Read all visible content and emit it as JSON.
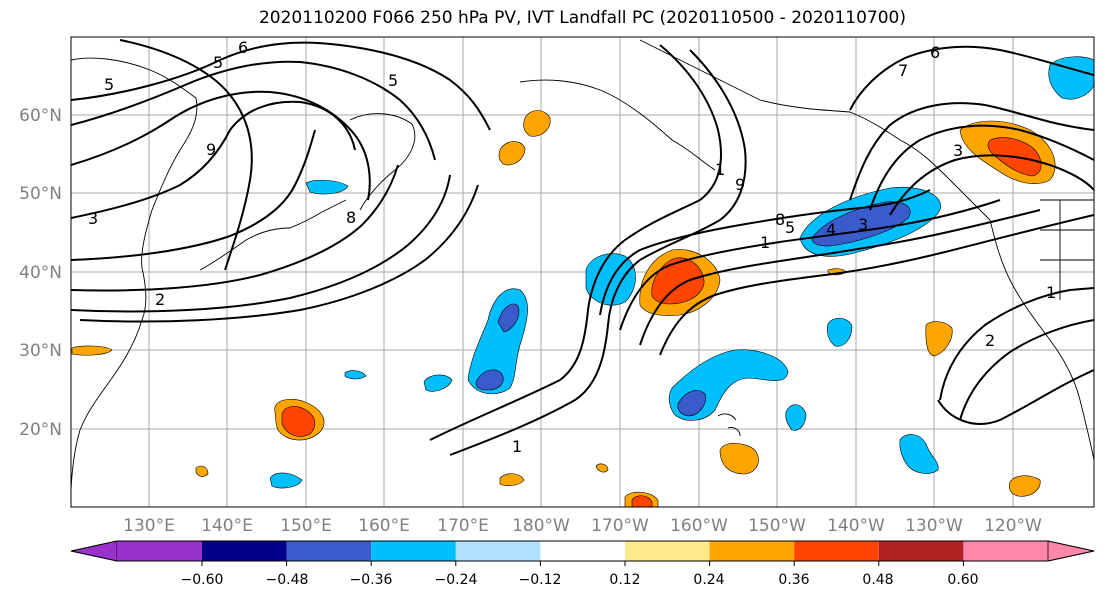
{
  "title": "2020110200 F066 250 hPa PV, IVT Landfall PC (2020110500 - 2020110700)",
  "map": {
    "lon_labels": [
      "130°E",
      "140°E",
      "150°E",
      "160°E",
      "170°E",
      "180°W",
      "170°W",
      "160°W",
      "150°W",
      "140°W",
      "130°W",
      "120°W"
    ],
    "lat_labels": [
      "60°N",
      "50°N",
      "40°N",
      "30°N",
      "20°N"
    ],
    "pv_contour_labels": [
      "6",
      "5",
      "5",
      "5",
      "9",
      "8",
      "3",
      "1",
      "2",
      "1",
      "9",
      "8",
      "1",
      "5",
      "4",
      "3",
      "7",
      "6",
      "3",
      "1",
      "2"
    ]
  },
  "colorbar": {
    "colors": [
      "#9932cc",
      "#00008b",
      "#3a5bcc",
      "#00bfff",
      "#b0e2ff",
      "#ffffff",
      "#ffe98a",
      "#ffa500",
      "#ff4500",
      "#b22222",
      "#ff88aa"
    ],
    "tick_labels": [
      "−0.60",
      "−0.48",
      "−0.36",
      "−0.24",
      "−0.12",
      "0.12",
      "0.24",
      "0.36",
      "0.48",
      "0.60"
    ]
  }
}
